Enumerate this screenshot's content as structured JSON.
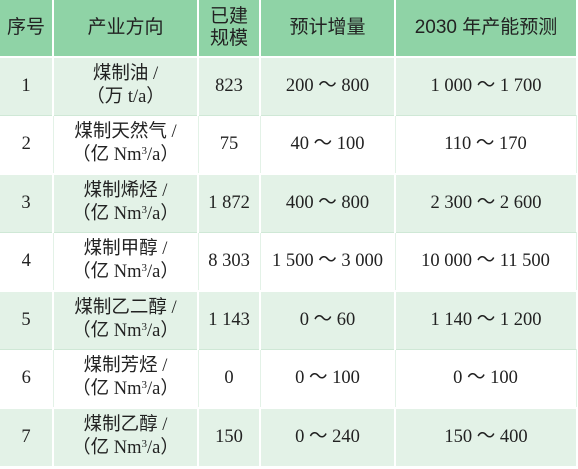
{
  "header": [
    "序号",
    "产业方向",
    "已建\n规模",
    "预计增量",
    "2030 年产能预测"
  ],
  "rows": [
    {
      "no": "1",
      "dir_line1": "煤制油 /",
      "unit_pre": "（万 t/a）",
      "unit_sup": "",
      "unit_post": "",
      "built": "823",
      "increase": "200 ～ 800",
      "forecast": "1 000 ～ 1 700"
    },
    {
      "no": "2",
      "dir_line1": "煤制天然气 /",
      "unit_pre": "（亿 Nm",
      "unit_sup": "3",
      "unit_post": "/a）",
      "built": "75",
      "increase": "40 ～ 100",
      "forecast": "110 ～ 170"
    },
    {
      "no": "3",
      "dir_line1": "煤制烯烃 /",
      "unit_pre": "（亿 Nm",
      "unit_sup": "3",
      "unit_post": "/a）",
      "built": "1 872",
      "increase": "400 ～ 800",
      "forecast": "2 300 ～ 2 600"
    },
    {
      "no": "4",
      "dir_line1": "煤制甲醇 /",
      "unit_pre": "（亿 Nm",
      "unit_sup": "3",
      "unit_post": "/a）",
      "built": "8 303",
      "increase": "1 500 ～ 3 000",
      "forecast": "10 000 ～ 11 500"
    },
    {
      "no": "5",
      "dir_line1": "煤制乙二醇 /",
      "unit_pre": "（亿 Nm",
      "unit_sup": "3",
      "unit_post": "/a）",
      "built": "1 143",
      "increase": "0 ～ 60",
      "forecast": "1 140 ～ 1 200"
    },
    {
      "no": "6",
      "dir_line1": "煤制芳烃 /",
      "unit_pre": "（亿 Nm",
      "unit_sup": "3",
      "unit_post": "/a）",
      "built": "0",
      "increase": "0 ～ 100",
      "forecast": "0 ～ 100"
    },
    {
      "no": "7",
      "dir_line1": "煤制乙醇 /",
      "unit_pre": "（亿 Nm",
      "unit_sup": "3",
      "unit_post": "/a）",
      "built": "150",
      "increase": "0 ～ 240",
      "forecast": "150 ～ 400"
    }
  ],
  "colors": {
    "header_bg": "#8fd3a6",
    "odd_row_bg": "#e3f2e7",
    "even_row_bg": "#ffffff",
    "divider": "#ffffff"
  }
}
